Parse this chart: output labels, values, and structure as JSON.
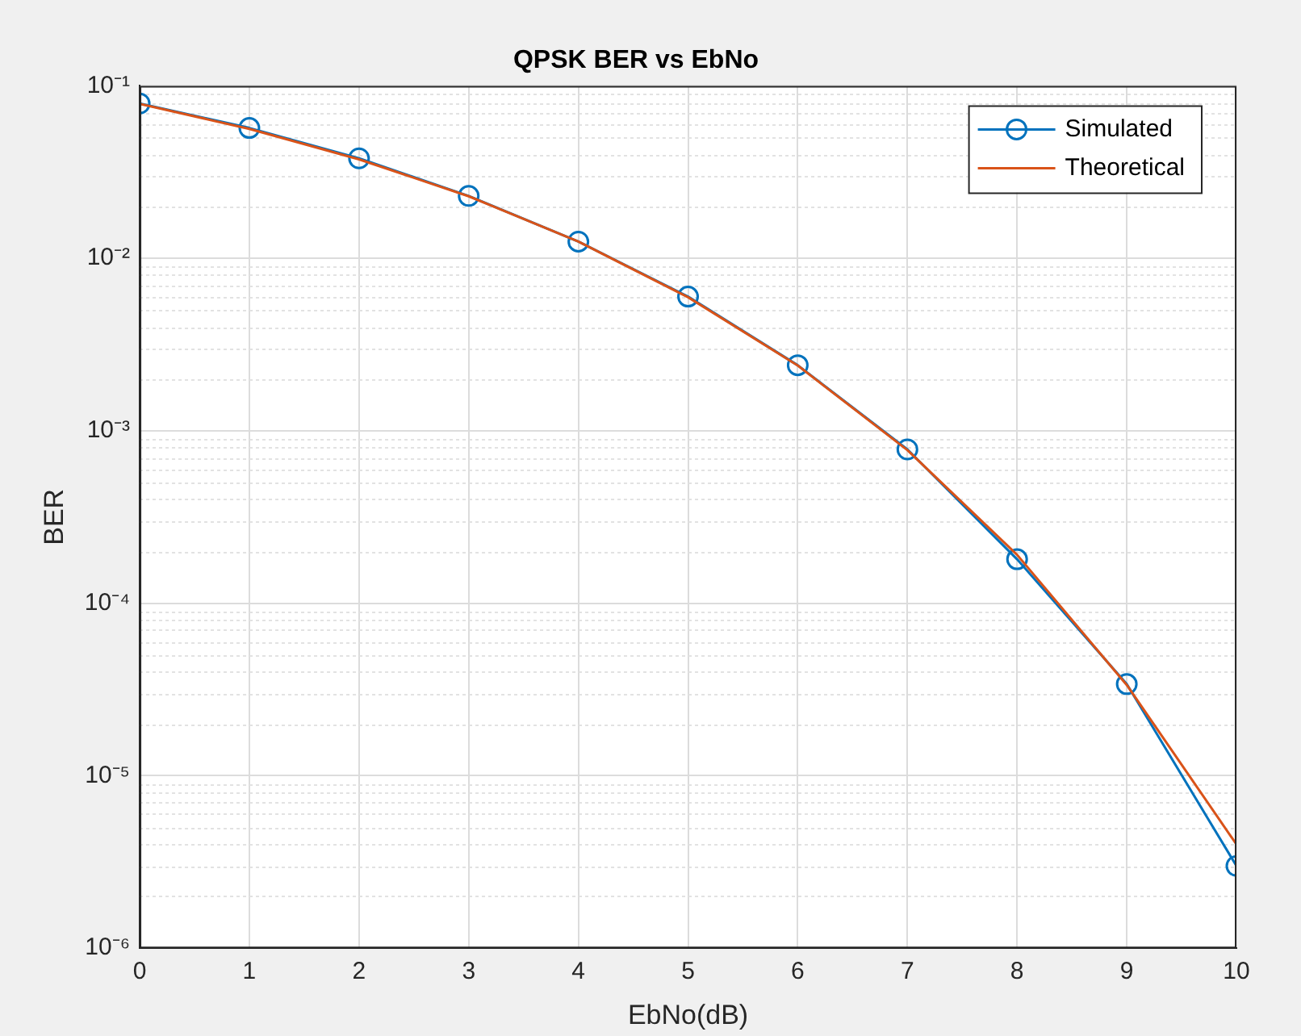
{
  "chart_data": {
    "type": "line",
    "title": "QPSK BER vs EbNo",
    "xlabel": "EbNo(dB)",
    "ylabel": "BER",
    "x": [
      0,
      1,
      2,
      3,
      4,
      5,
      6,
      7,
      8,
      9,
      10
    ],
    "series": [
      {
        "name": "Simulated",
        "color": "#0072bd",
        "marker": "circle",
        "values": [
          0.079,
          0.057,
          0.038,
          0.023,
          0.0125,
          0.006,
          0.0024,
          0.00078,
          0.00018,
          3.4e-05,
          3e-06
        ]
      },
      {
        "name": "Theoretical",
        "color": "#d95319",
        "marker": "none",
        "values": [
          0.0786,
          0.0563,
          0.0375,
          0.0229,
          0.0125,
          0.00595,
          0.00239,
          0.000773,
          0.000191,
          3.36e-05,
          4e-06
        ]
      }
    ],
    "xlim": [
      0,
      10
    ],
    "xticks": [
      0,
      1,
      2,
      3,
      4,
      5,
      6,
      7,
      8,
      9,
      10
    ],
    "ylim": [
      1e-06,
      0.1
    ],
    "yticks": [
      {
        "value": 1e-06,
        "label": "10⁻⁶"
      },
      {
        "value": 1e-05,
        "label": "10⁻⁵"
      },
      {
        "value": 0.0001,
        "label": "10⁻⁴"
      },
      {
        "value": 0.001,
        "label": "10⁻³"
      },
      {
        "value": 0.01,
        "label": "10⁻²"
      },
      {
        "value": 0.1,
        "label": "10⁻¹"
      }
    ],
    "log": "y",
    "grid": true,
    "legend": "top right",
    "line_style": "solid"
  }
}
